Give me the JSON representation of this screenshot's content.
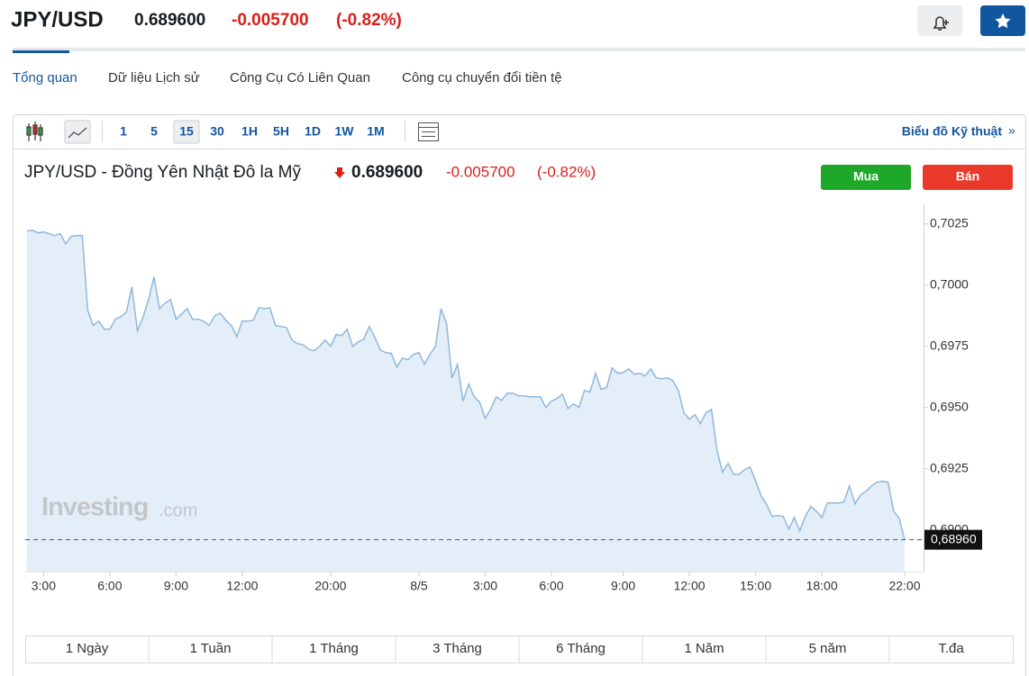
{
  "header": {
    "symbol": "JPY/USD",
    "price": "0.689600",
    "change": "-0.005700",
    "change_pct": "(-0.82%)"
  },
  "tabs": [
    "Tổng quan",
    "Dữ liệu Lịch sử",
    "Công Cụ Có Liên Quan",
    "Công cụ chuyển đổi tiền tệ"
  ],
  "toolbar": {
    "intervals": [
      "1",
      "5",
      "15",
      "30",
      "1H",
      "5H",
      "1D",
      "1W",
      "1M"
    ],
    "selected_interval": "15",
    "technical_link": "Biểu đồ Kỹ thuật",
    "technical_arrow": "»"
  },
  "quote": {
    "name": "JPY/USD - Đồng Yên Nhật Đô la Mỹ",
    "price": "0.689600",
    "change": "-0.005700",
    "change_pct": "(-0.82%)",
    "buy": "Mua",
    "sell": "Bán"
  },
  "watermark": {
    "brand": "Investing",
    "suffix": ".com"
  },
  "chart_data": {
    "type": "area",
    "color": "#8fb8dc",
    "fill": "#e4eef8",
    "values": [
      0.70221,
      0.70224,
      0.70213,
      0.70217,
      0.7021,
      0.70202,
      0.7021,
      0.70169,
      0.70199,
      0.70202,
      0.70202,
      0.69897,
      0.69835,
      0.69853,
      0.6982,
      0.6982,
      0.6986,
      0.69871,
      0.6989,
      0.69993,
      0.69813,
      0.69868,
      0.69941,
      0.70033,
      0.69904,
      0.69926,
      0.69941,
      0.6986,
      0.69882,
      0.69904,
      0.6986,
      0.6986,
      0.69853,
      0.69835,
      0.69875,
      0.69886,
      0.69857,
      0.69835,
      0.6979,
      0.69853,
      0.69853,
      0.69857,
      0.69908,
      0.69904,
      0.69908,
      0.69835,
      0.69831,
      0.69827,
      0.69776,
      0.69761,
      0.69757,
      0.69739,
      0.69732,
      0.6975,
      0.69776,
      0.6975,
      0.69798,
      0.69794,
      0.6982,
      0.6975,
      0.69768,
      0.69779,
      0.69831,
      0.69787,
      0.69735,
      0.69724,
      0.69721,
      0.69665,
      0.69702,
      0.69695,
      0.69717,
      0.69724,
      0.69676,
      0.69717,
      0.6975,
      0.69904,
      0.69842,
      0.69621,
      0.69676,
      0.69526,
      0.69596,
      0.69544,
      0.69522,
      0.69456,
      0.69493,
      0.69544,
      0.69529,
      0.69559,
      0.69559,
      0.69548,
      0.69548,
      0.69544,
      0.69544,
      0.69544,
      0.695,
      0.69526,
      0.69537,
      0.69555,
      0.69496,
      0.69515,
      0.695,
      0.6957,
      0.69563,
      0.6964,
      0.69574,
      0.69581,
      0.69662,
      0.6964,
      0.69643,
      0.69658,
      0.69636,
      0.6964,
      0.69629,
      0.69658,
      0.69621,
      0.69618,
      0.69621,
      0.6961,
      0.6957,
      0.69478,
      0.69452,
      0.69471,
      0.69434,
      0.69478,
      0.69493,
      0.69327,
      0.69235,
      0.69272,
      0.69228,
      0.69228,
      0.69246,
      0.69257,
      0.69199,
      0.6914,
      0.69103,
      0.69055,
      0.69059,
      0.69055,
      0.69004,
      0.69051,
      0.68996,
      0.69055,
      0.69096,
      0.69077,
      0.69051,
      0.6911,
      0.6911,
      0.6911,
      0.69114,
      0.6918,
      0.69107,
      0.69143,
      0.69158,
      0.6918,
      0.69195,
      0.69199,
      0.69195,
      0.69077,
      0.69048,
      0.6896
    ],
    "ylim": [
      0.6883,
      0.7033
    ],
    "yticks": [
      {
        "value": 0.7025,
        "label": "0,7025"
      },
      {
        "value": 0.7,
        "label": "0,7000"
      },
      {
        "value": 0.6975,
        "label": "0,6975"
      },
      {
        "value": 0.695,
        "label": "0,6950"
      },
      {
        "value": 0.6925,
        "label": "0,6925"
      },
      {
        "value": 0.69,
        "label": "0,6900"
      }
    ],
    "xticks": [
      {
        "value": 3,
        "label": "3:00"
      },
      {
        "value": 15,
        "label": "6:00"
      },
      {
        "value": 27,
        "label": "9:00"
      },
      {
        "value": 39,
        "label": "12:00"
      },
      {
        "value": 55,
        "label": "20:00"
      },
      {
        "value": 71,
        "label": "8/5"
      },
      {
        "value": 83,
        "label": "3:00"
      },
      {
        "value": 95,
        "label": "6:00"
      },
      {
        "value": 108,
        "label": "9:00"
      },
      {
        "value": 120,
        "label": "12:00"
      },
      {
        "value": 132,
        "label": "15:00"
      },
      {
        "value": 144,
        "label": "18:00"
      },
      {
        "value": 159,
        "label": "22:00"
      }
    ],
    "current_price": {
      "value": 0.6896,
      "label": "0,68960"
    }
  },
  "ranges": [
    "1 Ngày",
    "1 Tuần",
    "1 Tháng",
    "3 Tháng",
    "6 Tháng",
    "1 Năm",
    "5 năm",
    "T.đa"
  ]
}
